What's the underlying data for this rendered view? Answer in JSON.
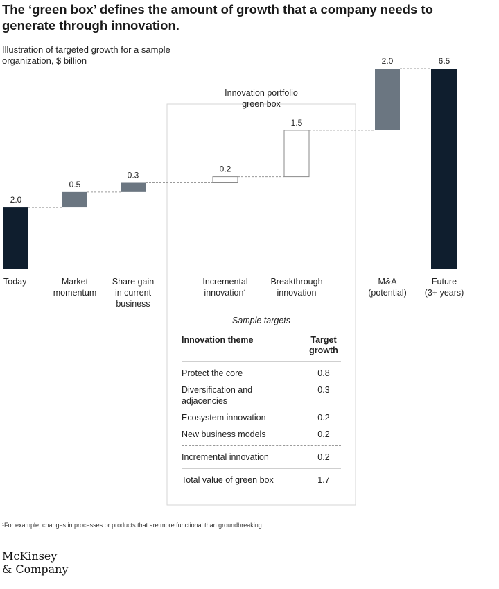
{
  "header": {
    "title": "The ‘green box’ defines the amount of growth that a company needs to generate through innovation.",
    "subtitle": "Illustration of targeted growth for a sample organization, $ billion"
  },
  "chart_data": {
    "type": "bar",
    "subtype": "waterfall",
    "unit": "$ billion",
    "categories": [
      "Today",
      "Market momentum",
      "Share gain in current business",
      "Incremental innovation¹",
      "Breakthrough innovation",
      "M&A (potential)",
      "Future (3+ years)"
    ],
    "values": [
      2.0,
      0.5,
      0.3,
      0.2,
      1.5,
      2.0,
      6.5
    ],
    "value_labels": [
      "2.0",
      "0.5",
      "0.3",
      "0.2",
      "1.5",
      "2.0",
      "6.5"
    ],
    "bar_kind": [
      "total",
      "increment",
      "increment",
      "innovation",
      "innovation",
      "increment",
      "total"
    ],
    "colors": {
      "total": "#0f1e2e",
      "increment": "#6b7681",
      "innovation": "#ffffff",
      "innovation_border": "#8a8a8a",
      "box_border": "#d6d6d6",
      "connector": "#9a9a9a"
    },
    "green_box_label": "Innovation portfolio green box",
    "ylim": [
      0,
      6.5
    ]
  },
  "sample_targets": {
    "caption": "Sample targets",
    "header": {
      "theme": "Innovation theme",
      "growth": "Target growth"
    },
    "rows": [
      {
        "theme": "Protect the core",
        "value": "0.8"
      },
      {
        "theme": "Diversification and adjacencies",
        "value": "0.3"
      },
      {
        "theme": "Ecosystem innovation",
        "value": "0.2"
      },
      {
        "theme": "New business models",
        "value": "0.2"
      }
    ],
    "incremental": {
      "theme": "Incremental innovation",
      "value": "0.2"
    },
    "total": {
      "theme": "Total value of green box",
      "value": "1.7"
    }
  },
  "footnote": "¹For example, changes in processes or products that are more functional than groundbreaking.",
  "logo": {
    "line1": "McKinsey",
    "line2": "& Company"
  }
}
